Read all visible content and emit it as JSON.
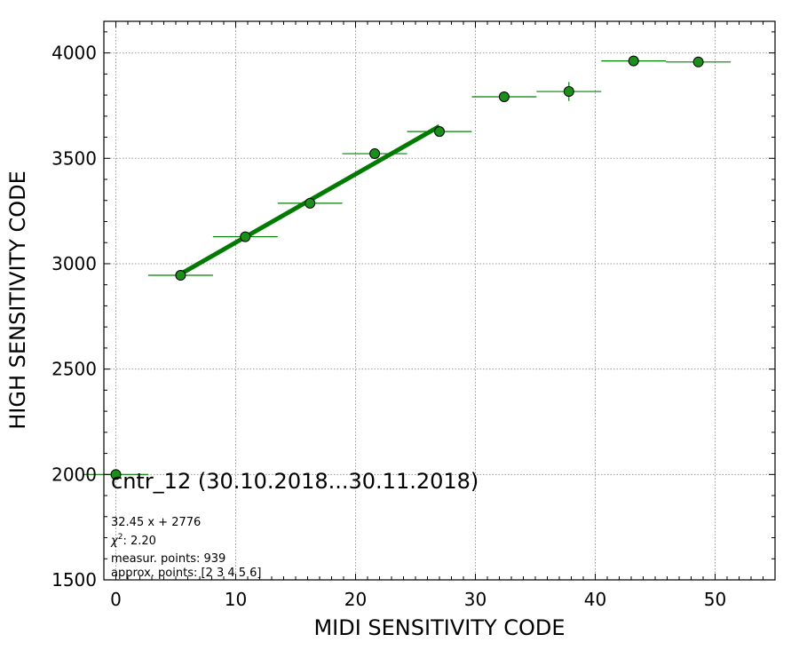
{
  "chart_data": {
    "type": "scatter",
    "xlabel": "MIDI SENSITIVITY CODE",
    "ylabel": "HIGH SENSITIVITY CODE",
    "xlim": [
      -1,
      55
    ],
    "ylim": [
      1500,
      4150
    ],
    "xticks": [
      0,
      10,
      20,
      30,
      40,
      50
    ],
    "yticks": [
      1500,
      2000,
      2500,
      3000,
      3500,
      4000
    ],
    "grid": true,
    "points": [
      {
        "x": 0.0,
        "y": 2000,
        "xerr": 2.7,
        "yerr": 5
      },
      {
        "x": 5.4,
        "y": 2945,
        "xerr": 2.7,
        "yerr": 15
      },
      {
        "x": 10.8,
        "y": 3128,
        "xerr": 2.7,
        "yerr": 20
      },
      {
        "x": 16.2,
        "y": 3287,
        "xerr": 2.7,
        "yerr": 15
      },
      {
        "x": 21.6,
        "y": 3522,
        "xerr": 2.7,
        "yerr": 20
      },
      {
        "x": 27.0,
        "y": 3627,
        "xerr": 2.7,
        "yerr": 25
      },
      {
        "x": 32.4,
        "y": 3792,
        "xerr": 2.7,
        "yerr": 15
      },
      {
        "x": 37.8,
        "y": 3817,
        "xerr": 2.7,
        "yerr": 45
      },
      {
        "x": 43.2,
        "y": 3962,
        "xerr": 2.7,
        "yerr": 10
      },
      {
        "x": 48.6,
        "y": 3957,
        "xerr": 2.7,
        "yerr": 10
      }
    ],
    "fit": {
      "slope": 32.45,
      "intercept": 2776,
      "x_range": [
        5.4,
        27.0
      ]
    },
    "colors": {
      "marker": "#1a8f1a",
      "errorbar": "#008000",
      "fit_line": "#007a00",
      "grid": "#9a9a9a"
    },
    "annotation": {
      "title": "cntr_12 (30.10.2018...30.11.2018)",
      "fit_text": "32.45 x + 2776",
      "chi2_label": "χ",
      "chi2_sup": "2",
      "chi2_value": ": 2.20",
      "measured": "measur. points: 939",
      "approx": "approx. points: [2 3 4 5 6]"
    }
  }
}
